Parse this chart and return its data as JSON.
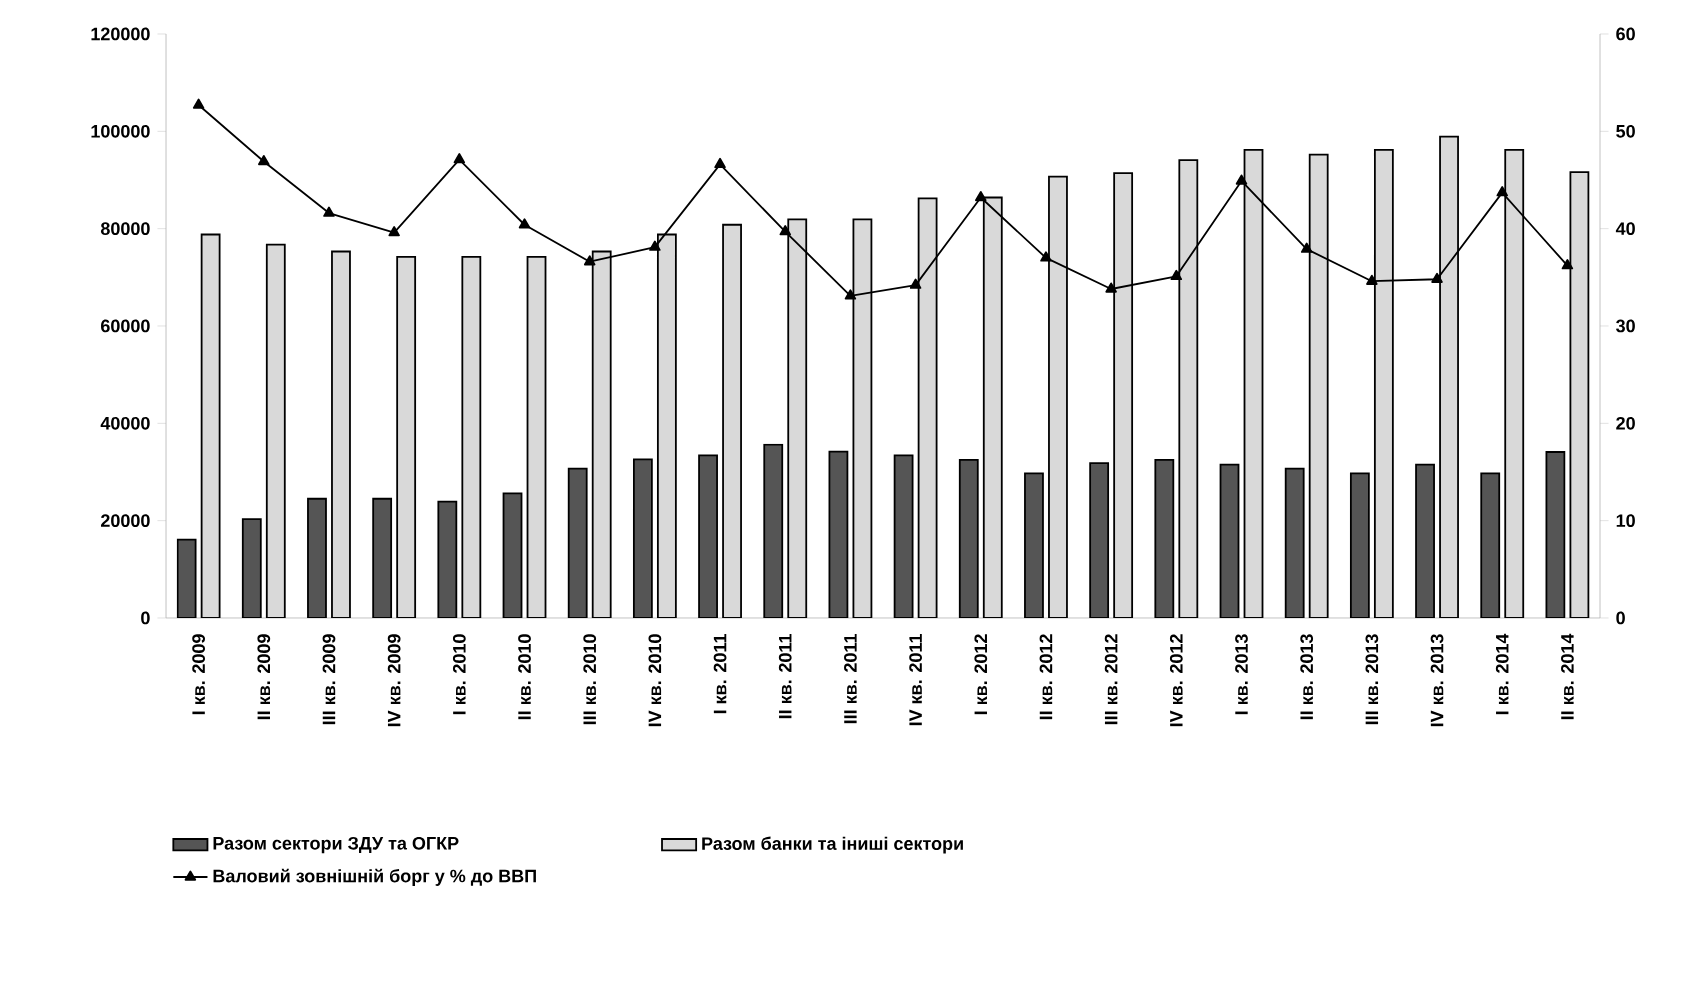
{
  "chart_data": {
    "type": "bar",
    "categories": [
      "I кв. 2009",
      "II кв. 2009",
      "III кв. 2009",
      "IV кв. 2009",
      "I кв. 2010",
      "II кв. 2010",
      "III кв. 2010",
      "IV кв. 2010",
      "I кв. 2011",
      "II кв. 2011",
      "III кв. 2011",
      "IV кв. 2011",
      "I кв. 2012",
      "II кв. 2012",
      "III кв. 2012",
      "IV кв. 2012",
      "I кв. 2013",
      "II кв. 2013",
      "III кв. 2013",
      "IV кв. 2013",
      "I кв. 2014",
      "II кв. 2014"
    ],
    "series": [
      {
        "name": "Разом сектори ЗДУ та ОГКР",
        "color": "#555555",
        "values": [
          16100,
          20300,
          24500,
          24500,
          23900,
          25600,
          30700,
          32600,
          33400,
          35600,
          34200,
          33400,
          32500,
          29700,
          31800,
          32500,
          31500,
          30700,
          29700,
          31500,
          29700,
          34100
        ]
      },
      {
        "name": "Разом банки та іниші сектори",
        "color": "#d9d9d9",
        "values": [
          78800,
          76700,
          75300,
          74200,
          74200,
          74200,
          75300,
          78800,
          80800,
          81900,
          81900,
          86200,
          86400,
          90700,
          91400,
          94100,
          96200,
          95200,
          96200,
          98900,
          96200,
          91600
        ]
      },
      {
        "name": "Валовий зовнішній борг у % до ВВП",
        "type": "line",
        "axis": "y2",
        "color": "#000000",
        "values": [
          52.7,
          46.9,
          41.6,
          39.6,
          47.1,
          40.4,
          36.6,
          38.1,
          46.6,
          39.7,
          33.1,
          34.2,
          43.2,
          37.0,
          33.8,
          35.1,
          44.9,
          37.9,
          34.6,
          34.8,
          43.7,
          36.2
        ]
      }
    ],
    "ylim": [
      0,
      120000
    ],
    "yticks": [
      0,
      20000,
      40000,
      60000,
      80000,
      100000,
      120000
    ],
    "y2lim": [
      0,
      60
    ],
    "y2ticks": [
      0,
      10,
      20,
      30,
      40,
      50,
      60
    ],
    "marker": "triangle",
    "line_style": "solid",
    "legend": "bottom"
  }
}
